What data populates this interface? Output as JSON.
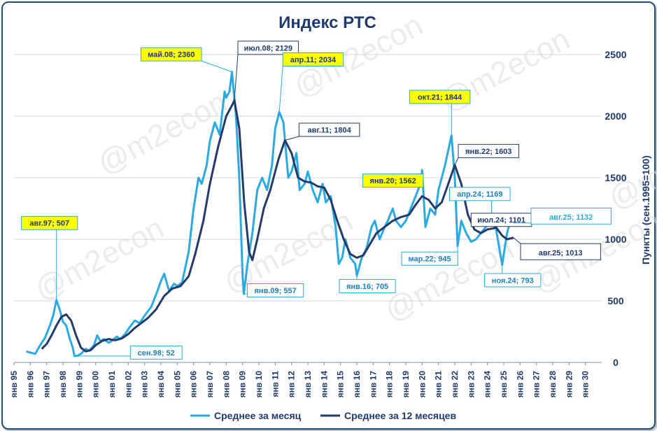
{
  "watermark": "@m2econ",
  "chart_data": {
    "type": "line",
    "title": "Индекс РТС",
    "ylabel": "Пункты (сен.1995=100)",
    "ylim": [
      0,
      2500
    ],
    "yticks": [
      0,
      500,
      1000,
      1500,
      2000,
      2500
    ],
    "xlim": [
      1995,
      2031
    ],
    "xticks": [
      "янв 95",
      "янв 96",
      "янв 97",
      "янв 98",
      "янв 99",
      "янв 00",
      "янв 01",
      "янв 02",
      "янв 03",
      "янв 04",
      "янв 05",
      "янв 06",
      "янв 07",
      "янв 08",
      "янв 09",
      "янв 10",
      "янв 11",
      "янв 12",
      "янв 13",
      "янв 14",
      "янв 15",
      "янв 16",
      "янв 17",
      "янв 18",
      "янв 19",
      "янв 20",
      "янв 21",
      "янв 22",
      "янв 23",
      "янв 24",
      "янв 25",
      "янв 26",
      "янв 27",
      "янв 28",
      "янв 29",
      "янв 30"
    ],
    "grid": true,
    "legend_position": "bottom",
    "series": [
      {
        "name": "Среднее за месяц",
        "color": "#29abe2",
        "points": [
          [
            1995.75,
            90
          ],
          [
            1996.0,
            80
          ],
          [
            1996.3,
            70
          ],
          [
            1996.6,
            140
          ],
          [
            1996.9,
            200
          ],
          [
            1997.2,
            300
          ],
          [
            1997.4,
            380
          ],
          [
            1997.6,
            507
          ],
          [
            1997.8,
            430
          ],
          [
            1998.0,
            330
          ],
          [
            1998.2,
            300
          ],
          [
            1998.4,
            200
          ],
          [
            1998.6,
            120
          ],
          [
            1998.7,
            52
          ],
          [
            1998.9,
            55
          ],
          [
            1999.1,
            70
          ],
          [
            1999.4,
            110
          ],
          [
            1999.6,
            95
          ],
          [
            1999.9,
            140
          ],
          [
            2000.1,
            220
          ],
          [
            2000.3,
            170
          ],
          [
            2000.5,
            190
          ],
          [
            2000.8,
            160
          ],
          [
            2001.0,
            175
          ],
          [
            2001.3,
            210
          ],
          [
            2001.5,
            190
          ],
          [
            2001.8,
            230
          ],
          [
            2002.1,
            290
          ],
          [
            2002.4,
            340
          ],
          [
            2002.7,
            320
          ],
          [
            2003.0,
            380
          ],
          [
            2003.4,
            450
          ],
          [
            2003.7,
            550
          ],
          [
            2004.0,
            660
          ],
          [
            2004.2,
            720
          ],
          [
            2004.5,
            580
          ],
          [
            2004.8,
            640
          ],
          [
            2005.0,
            620
          ],
          [
            2005.3,
            650
          ],
          [
            2005.7,
            900
          ],
          [
            2006.0,
            1250
          ],
          [
            2006.3,
            1500
          ],
          [
            2006.5,
            1450
          ],
          [
            2006.8,
            1600
          ],
          [
            2007.0,
            1800
          ],
          [
            2007.3,
            1950
          ],
          [
            2007.6,
            1850
          ],
          [
            2007.9,
            2200
          ],
          [
            2008.0,
            2150
          ],
          [
            2008.2,
            2200
          ],
          [
            2008.35,
            2360
          ],
          [
            2008.6,
            2000
          ],
          [
            2008.8,
            1500
          ],
          [
            2009.0,
            700
          ],
          [
            2009.08,
            557
          ],
          [
            2009.3,
            800
          ],
          [
            2009.6,
            1050
          ],
          [
            2009.9,
            1400
          ],
          [
            2010.2,
            1500
          ],
          [
            2010.5,
            1400
          ],
          [
            2010.8,
            1600
          ],
          [
            2011.0,
            1900
          ],
          [
            2011.25,
            2034
          ],
          [
            2011.5,
            1950
          ],
          [
            2011.8,
            1500
          ],
          [
            2012.0,
            1550
          ],
          [
            2012.3,
            1700
          ],
          [
            2012.5,
            1400
          ],
          [
            2012.8,
            1450
          ],
          [
            2013.0,
            1550
          ],
          [
            2013.3,
            1400
          ],
          [
            2013.6,
            1300
          ],
          [
            2013.9,
            1450
          ],
          [
            2014.1,
            1300
          ],
          [
            2014.4,
            1350
          ],
          [
            2014.7,
            1100
          ],
          [
            2014.9,
            800
          ],
          [
            2015.1,
            850
          ],
          [
            2015.3,
            1000
          ],
          [
            2015.6,
            850
          ],
          [
            2015.9,
            800
          ],
          [
            2016.0,
            705
          ],
          [
            2016.3,
            850
          ],
          [
            2016.6,
            930
          ],
          [
            2016.9,
            1100
          ],
          [
            2017.1,
            1150
          ],
          [
            2017.4,
            1000
          ],
          [
            2017.7,
            1100
          ],
          [
            2017.9,
            1150
          ],
          [
            2018.2,
            1250
          ],
          [
            2018.4,
            1150
          ],
          [
            2018.7,
            1100
          ],
          [
            2019.0,
            1150
          ],
          [
            2019.3,
            1250
          ],
          [
            2019.6,
            1350
          ],
          [
            2019.9,
            1450
          ],
          [
            2020.0,
            1562
          ],
          [
            2020.2,
            1100
          ],
          [
            2020.5,
            1250
          ],
          [
            2020.8,
            1200
          ],
          [
            2021.0,
            1400
          ],
          [
            2021.4,
            1600
          ],
          [
            2021.8,
            1844
          ],
          [
            2022.0,
            1500
          ],
          [
            2022.17,
            945
          ],
          [
            2022.4,
            1150
          ],
          [
            2022.7,
            1050
          ],
          [
            2023.0,
            980
          ],
          [
            2023.3,
            1000
          ],
          [
            2023.6,
            1050
          ],
          [
            2023.9,
            1100
          ],
          [
            2024.25,
            1169
          ],
          [
            2024.5,
            1100
          ],
          [
            2024.7,
            950
          ],
          [
            2024.9,
            793
          ],
          [
            2025.2,
            1050
          ],
          [
            2025.4,
            1150
          ],
          [
            2025.6,
            1132
          ]
        ]
      },
      {
        "name": "Среднее за 12 месяцев",
        "color": "#243a6b",
        "points": [
          [
            1996.7,
            110
          ],
          [
            1997.0,
            150
          ],
          [
            1997.3,
            220
          ],
          [
            1997.6,
            300
          ],
          [
            1997.9,
            370
          ],
          [
            1998.2,
            390
          ],
          [
            1998.5,
            340
          ],
          [
            1998.8,
            220
          ],
          [
            1999.1,
            120
          ],
          [
            1999.4,
            90
          ],
          [
            1999.7,
            100
          ],
          [
            2000.0,
            140
          ],
          [
            2000.4,
            175
          ],
          [
            2000.8,
            190
          ],
          [
            2001.2,
            180
          ],
          [
            2001.6,
            195
          ],
          [
            2002.0,
            230
          ],
          [
            2002.4,
            280
          ],
          [
            2002.8,
            320
          ],
          [
            2003.2,
            360
          ],
          [
            2003.7,
            430
          ],
          [
            2004.2,
            540
          ],
          [
            2004.7,
            600
          ],
          [
            2005.2,
            620
          ],
          [
            2005.7,
            700
          ],
          [
            2006.1,
            880
          ],
          [
            2006.6,
            1150
          ],
          [
            2007.0,
            1450
          ],
          [
            2007.5,
            1750
          ],
          [
            2008.0,
            2000
          ],
          [
            2008.4,
            2100
          ],
          [
            2008.5,
            2129
          ],
          [
            2008.8,
            1900
          ],
          [
            2009.1,
            1300
          ],
          [
            2009.4,
            900
          ],
          [
            2009.6,
            830
          ],
          [
            2009.9,
            1000
          ],
          [
            2010.3,
            1250
          ],
          [
            2010.7,
            1400
          ],
          [
            2011.2,
            1650
          ],
          [
            2011.6,
            1804
          ],
          [
            2012.0,
            1700
          ],
          [
            2012.4,
            1500
          ],
          [
            2012.8,
            1470
          ],
          [
            2013.2,
            1460
          ],
          [
            2013.6,
            1430
          ],
          [
            2014.0,
            1420
          ],
          [
            2014.4,
            1320
          ],
          [
            2014.8,
            1150
          ],
          [
            2015.2,
            1000
          ],
          [
            2015.6,
            880
          ],
          [
            2016.0,
            850
          ],
          [
            2016.4,
            870
          ],
          [
            2016.8,
            960
          ],
          [
            2017.2,
            1050
          ],
          [
            2017.7,
            1100
          ],
          [
            2018.2,
            1150
          ],
          [
            2018.7,
            1180
          ],
          [
            2019.2,
            1200
          ],
          [
            2019.6,
            1280
          ],
          [
            2020.0,
            1350
          ],
          [
            2020.4,
            1320
          ],
          [
            2020.8,
            1250
          ],
          [
            2021.2,
            1300
          ],
          [
            2021.6,
            1450
          ],
          [
            2022.0,
            1603
          ],
          [
            2022.4,
            1450
          ],
          [
            2022.8,
            1200
          ],
          [
            2023.2,
            1080
          ],
          [
            2023.6,
            1050
          ],
          [
            2024.0,
            1080
          ],
          [
            2024.4,
            1090
          ],
          [
            2024.5,
            1101
          ],
          [
            2024.9,
            1030
          ],
          [
            2025.2,
            1000
          ],
          [
            2025.6,
            1013
          ]
        ]
      }
    ],
    "annotations": [
      {
        "label": "авг.97; 507",
        "x": 1997.6,
        "y": 507,
        "style": "highlight"
      },
      {
        "label": "сен.98; 52",
        "x": 1998.7,
        "y": 52,
        "style": "light"
      },
      {
        "label": "май.08; 2360",
        "x": 2008.35,
        "y": 2360,
        "style": "highlight"
      },
      {
        "label": "июл.08; 2129",
        "x": 2008.5,
        "y": 2129,
        "style": "dark"
      },
      {
        "label": "янв.09; 557",
        "x": 2009.08,
        "y": 557,
        "style": "light"
      },
      {
        "label": "апр.11; 2034",
        "x": 2011.25,
        "y": 2034,
        "style": "highlight"
      },
      {
        "label": "авг.11; 1804",
        "x": 2011.6,
        "y": 1804,
        "style": "dark"
      },
      {
        "label": "янв.16; 705",
        "x": 2016.0,
        "y": 705,
        "style": "light"
      },
      {
        "label": "янв.20; 1562",
        "x": 2020.0,
        "y": 1562,
        "style": "highlight"
      },
      {
        "label": "окт.21; 1844",
        "x": 2021.8,
        "y": 1844,
        "style": "highlight"
      },
      {
        "label": "янв.22; 1603",
        "x": 2022.0,
        "y": 1603,
        "style": "dark"
      },
      {
        "label": "мар.22; 945",
        "x": 2022.17,
        "y": 945,
        "style": "light"
      },
      {
        "label": "апр.24; 1169",
        "x": 2024.25,
        "y": 1169,
        "style": "light"
      },
      {
        "label": "июл.24; 1101",
        "x": 2024.5,
        "y": 1101,
        "style": "dark"
      },
      {
        "label": "ноя.24; 793",
        "x": 2024.9,
        "y": 793,
        "style": "light"
      },
      {
        "label": "авг.25; 1132",
        "x": 2025.6,
        "y": 1132,
        "style": "light-big"
      },
      {
        "label": "авг.25; 1013",
        "x": 2025.6,
        "y": 1013,
        "style": "dark-big"
      }
    ]
  }
}
